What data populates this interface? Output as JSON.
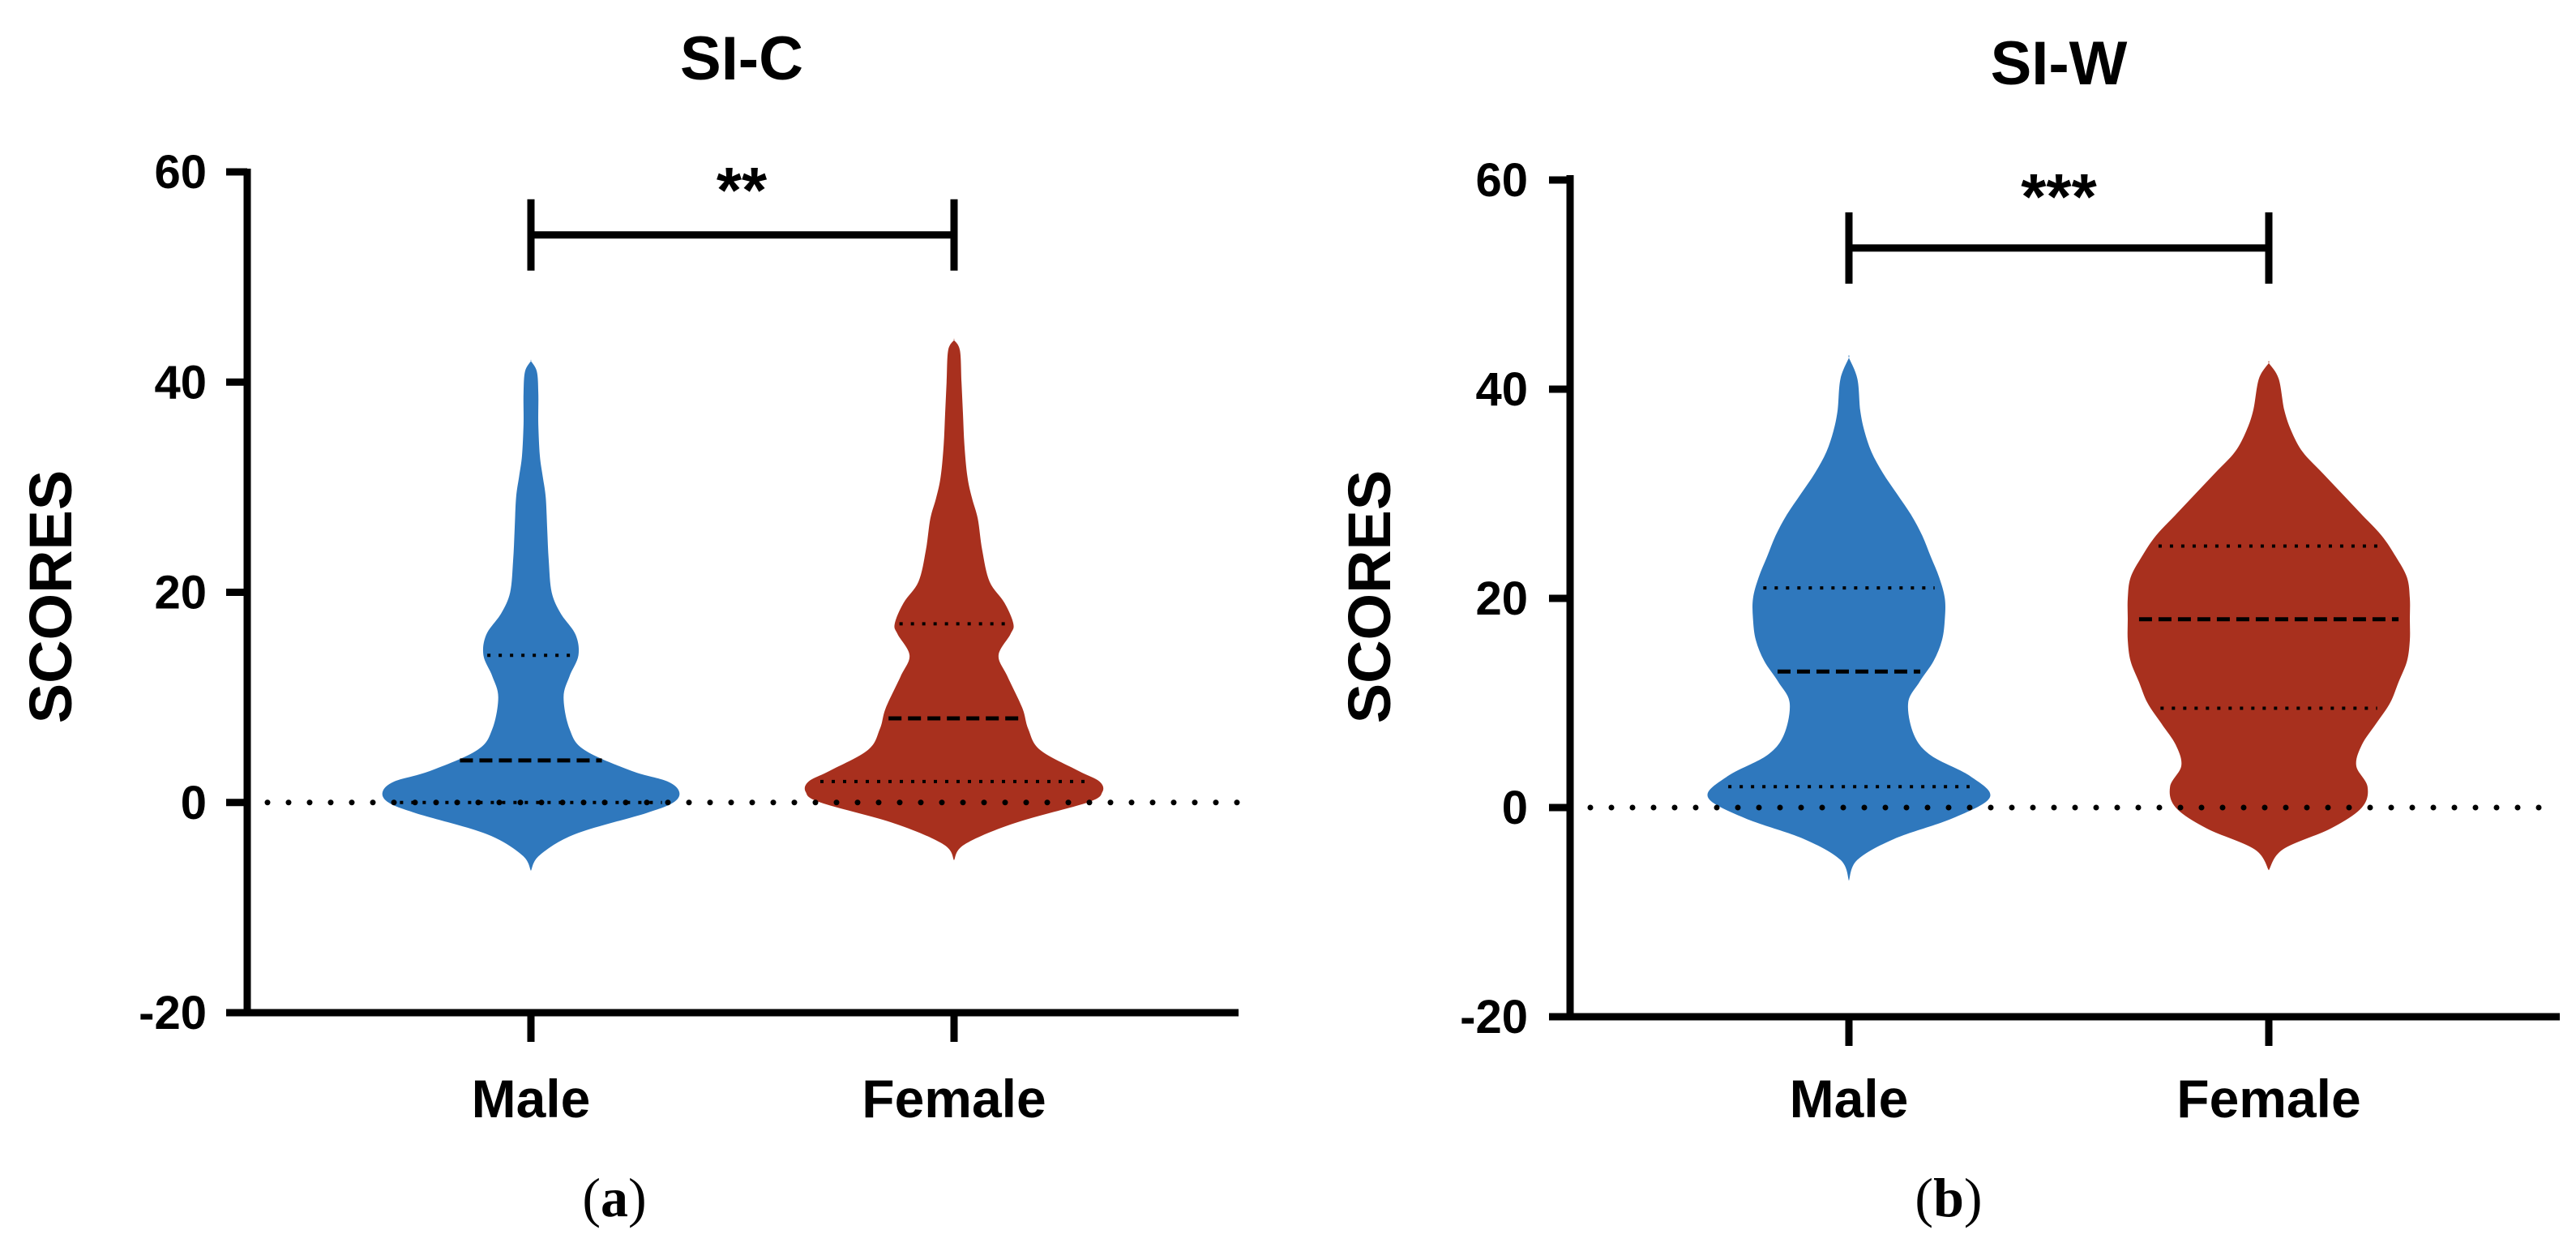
{
  "chart_data": [
    {
      "type": "violin",
      "panel": "(a)",
      "caption_open": "(",
      "caption_letter": "a",
      "caption_close": ")",
      "title": "SI-C",
      "xlabel": "",
      "ylabel": "SCORES",
      "ylim": [
        -20,
        60
      ],
      "yticks": [
        60,
        40,
        20,
        0,
        -20
      ],
      "reference_line": 0,
      "significance": {
        "between": [
          "Male",
          "Female"
        ],
        "label": "**",
        "y": 54
      },
      "categories": [
        "Male",
        "Female"
      ],
      "colors": [
        "#2f78bd",
        "#a8301e"
      ],
      "series": [
        {
          "name": "Male",
          "quartiles": {
            "q1": 0,
            "median": 4,
            "q3": 14
          },
          "density": [
            [
              -6.5,
              0.0
            ],
            [
              -5,
              0.06
            ],
            [
              -3,
              0.3
            ],
            [
              -1,
              0.78
            ],
            [
              0,
              0.96
            ],
            [
              1,
              1.0
            ],
            [
              2,
              0.92
            ],
            [
              3,
              0.68
            ],
            [
              5,
              0.36
            ],
            [
              7,
              0.26
            ],
            [
              10,
              0.22
            ],
            [
              12,
              0.26
            ],
            [
              14,
              0.32
            ],
            [
              16,
              0.3
            ],
            [
              18,
              0.2
            ],
            [
              20,
              0.14
            ],
            [
              23,
              0.12
            ],
            [
              26,
              0.11
            ],
            [
              29,
              0.1
            ],
            [
              31,
              0.08
            ],
            [
              33,
              0.06
            ],
            [
              36,
              0.05
            ],
            [
              39,
              0.05
            ],
            [
              41,
              0.04
            ],
            [
              42,
              0.0
            ]
          ]
        },
        {
          "name": "Female",
          "quartiles": {
            "q1": 2,
            "median": 8,
            "q3": 17
          },
          "density": [
            [
              -5.5,
              0.0
            ],
            [
              -4,
              0.07
            ],
            [
              -2,
              0.4
            ],
            [
              0,
              0.9
            ],
            [
              1,
              1.0
            ],
            [
              2,
              0.98
            ],
            [
              3,
              0.84
            ],
            [
              5,
              0.58
            ],
            [
              7,
              0.5
            ],
            [
              9,
              0.46
            ],
            [
              12,
              0.36
            ],
            [
              14,
              0.3
            ],
            [
              16,
              0.38
            ],
            [
              17,
              0.4
            ],
            [
              19,
              0.34
            ],
            [
              21,
              0.24
            ],
            [
              24,
              0.19
            ],
            [
              27,
              0.16
            ],
            [
              29,
              0.12
            ],
            [
              31,
              0.09
            ],
            [
              34,
              0.07
            ],
            [
              37,
              0.06
            ],
            [
              40,
              0.05
            ],
            [
              43,
              0.04
            ],
            [
              44,
              0.0
            ]
          ]
        }
      ]
    },
    {
      "type": "violin",
      "panel": "(b)",
      "caption_open": "(",
      "caption_letter": "b",
      "caption_close": ")",
      "title": "SI-W",
      "xlabel": "",
      "ylabel": "SCORES",
      "ylim": [
        -20,
        60
      ],
      "yticks": [
        60,
        40,
        20,
        0,
        -20
      ],
      "reference_line": 0,
      "significance": {
        "between": [
          "Male",
          "Female"
        ],
        "label": "***",
        "y": 53.5
      },
      "categories": [
        "Male",
        "Female"
      ],
      "colors": [
        "#2f78bd",
        "#a8301e"
      ],
      "series": [
        {
          "name": "Male",
          "quartiles": {
            "q1": 2,
            "median": 13,
            "q3": 21
          },
          "density": [
            [
              -7,
              0.0
            ],
            [
              -5,
              0.06
            ],
            [
              -3,
              0.32
            ],
            [
              -1,
              0.74
            ],
            [
              1,
              1.0
            ],
            [
              3,
              0.86
            ],
            [
              5,
              0.58
            ],
            [
              7,
              0.46
            ],
            [
              10,
              0.42
            ],
            [
              12,
              0.5
            ],
            [
              14,
              0.6
            ],
            [
              16,
              0.66
            ],
            [
              18,
              0.68
            ],
            [
              20,
              0.68
            ],
            [
              22,
              0.64
            ],
            [
              24,
              0.58
            ],
            [
              26,
              0.52
            ],
            [
              28,
              0.44
            ],
            [
              30,
              0.34
            ],
            [
              32,
              0.24
            ],
            [
              34,
              0.16
            ],
            [
              36,
              0.11
            ],
            [
              38,
              0.08
            ],
            [
              41,
              0.06
            ],
            [
              43,
              0.0
            ]
          ]
        },
        {
          "name": "Female",
          "quartiles": {
            "q1": 9.5,
            "median": 18,
            "q3": 25
          },
          "density": [
            [
              -6,
              0.0
            ],
            [
              -4,
              0.1
            ],
            [
              -2,
              0.44
            ],
            [
              0,
              0.66
            ],
            [
              2,
              0.7
            ],
            [
              4,
              0.62
            ],
            [
              6,
              0.66
            ],
            [
              8,
              0.76
            ],
            [
              10,
              0.86
            ],
            [
              12,
              0.92
            ],
            [
              14,
              0.98
            ],
            [
              16,
              1.0
            ],
            [
              18,
              1.0
            ],
            [
              20,
              1.0
            ],
            [
              22,
              0.98
            ],
            [
              24,
              0.9
            ],
            [
              26,
              0.8
            ],
            [
              28,
              0.66
            ],
            [
              30,
              0.52
            ],
            [
              32,
              0.38
            ],
            [
              34,
              0.24
            ],
            [
              36,
              0.16
            ],
            [
              38,
              0.11
            ],
            [
              41,
              0.07
            ],
            [
              42.5,
              0.0
            ]
          ]
        }
      ]
    }
  ]
}
